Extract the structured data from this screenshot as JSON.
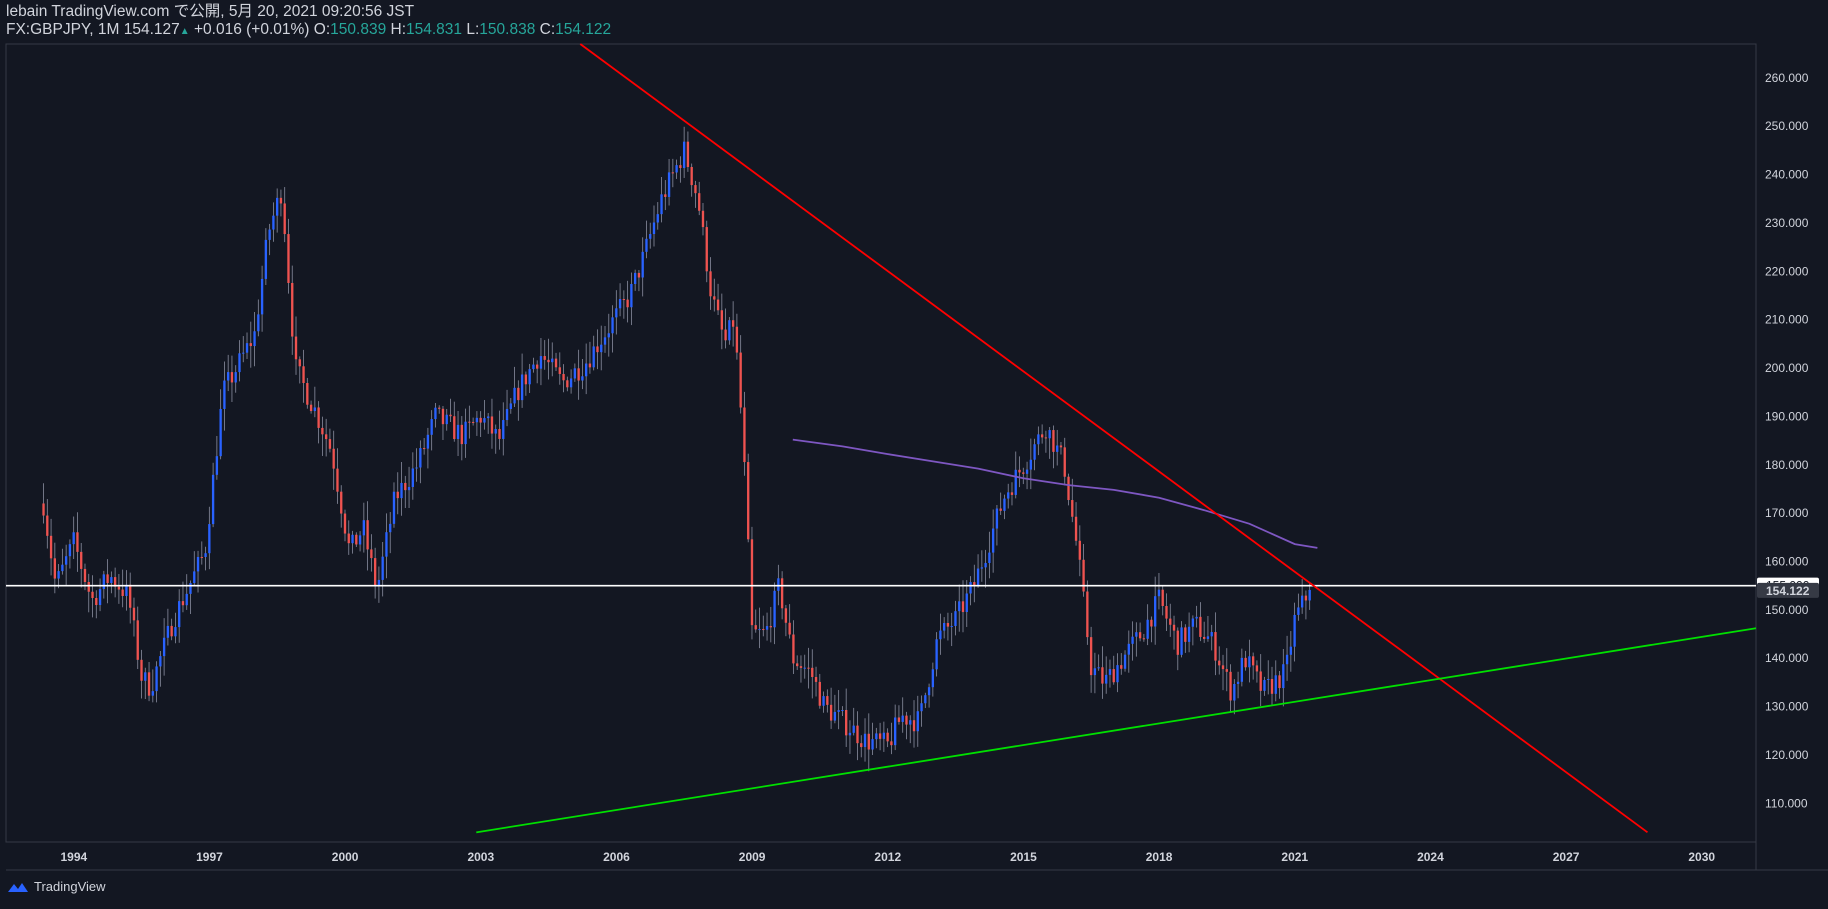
{
  "header": {
    "publisher": "lebain TradingView.com で公開, 5月 20, 2021 09:20:56 JST",
    "symbol": "FX:GBPJPY, 1M",
    "last": "154.127",
    "change": "+0.016 (+0.01%)",
    "o_label": "O:",
    "o": "150.839",
    "h_label": "H:",
    "h": "154.831",
    "l_label": "L:",
    "l": "150.838",
    "c_label": "C:",
    "c": "154.122",
    "up_arrow": "▲"
  },
  "footer": {
    "brand": "TradingView",
    "logo_icon": "tradingview-cloud-icon"
  },
  "colors": {
    "bg": "#131722",
    "up": "#2962ff",
    "down": "#ef5350",
    "trend_down": "#ff0000",
    "trend_up": "#00e000",
    "ma": "#7e57c2",
    "hline": "#ffffff"
  },
  "chart_data": {
    "type": "candlestick",
    "symbol": "FX:GBPJPY",
    "interval": "1M",
    "x_ticks": [
      "1994",
      "1997",
      "2000",
      "2003",
      "2006",
      "2009",
      "2012",
      "2015",
      "2018",
      "2021",
      "2024",
      "2027",
      "2030"
    ],
    "x_range": [
      1992.5,
      2031.2
    ],
    "y_ticks": [
      "110.000",
      "120.000",
      "130.000",
      "140.000",
      "150.000",
      "160.000",
      "170.000",
      "180.000",
      "190.000",
      "200.000",
      "210.000",
      "220.000",
      "230.000",
      "240.000",
      "250.000",
      "260.000"
    ],
    "y_range": [
      102,
      267
    ],
    "price_labels": {
      "hline": "155.000",
      "last": "154.122"
    },
    "hline": 155,
    "last_price": 154.122,
    "anchors": [
      [
        1993.33,
        172
      ],
      [
        1993.6,
        155
      ],
      [
        1994.0,
        164
      ],
      [
        1994.4,
        152
      ],
      [
        1994.8,
        157
      ],
      [
        1995.2,
        153
      ],
      [
        1995.5,
        136
      ],
      [
        1995.7,
        134
      ],
      [
        1996.2,
        148
      ],
      [
        1996.9,
        162
      ],
      [
        1997.3,
        195
      ],
      [
        1997.6,
        200
      ],
      [
        1998.0,
        207
      ],
      [
        1998.3,
        228
      ],
      [
        1998.6,
        237
      ],
      [
        1998.9,
        200
      ],
      [
        1999.3,
        192
      ],
      [
        1999.7,
        183
      ],
      [
        2000.1,
        162
      ],
      [
        2000.4,
        167
      ],
      [
        2000.7,
        154
      ],
      [
        2001.1,
        173
      ],
      [
        2001.6,
        180
      ],
      [
        2002.0,
        190
      ],
      [
        2002.6,
        186
      ],
      [
        2003.0,
        190
      ],
      [
        2003.4,
        185
      ],
      [
        2003.8,
        195
      ],
      [
        2004.3,
        203
      ],
      [
        2004.8,
        197
      ],
      [
        2005.3,
        201
      ],
      [
        2005.8,
        208
      ],
      [
        2006.3,
        215
      ],
      [
        2006.6,
        223
      ],
      [
        2007.0,
        235
      ],
      [
        2007.5,
        245
      ],
      [
        2007.8,
        235
      ],
      [
        2008.1,
        215
      ],
      [
        2008.4,
        205
      ],
      [
        2008.6,
        210
      ],
      [
        2008.8,
        185
      ],
      [
        2009.0,
        145
      ],
      [
        2009.3,
        145
      ],
      [
        2009.6,
        155
      ],
      [
        2009.9,
        140
      ],
      [
        2010.3,
        137
      ],
      [
        2010.6,
        130
      ],
      [
        2011.0,
        127
      ],
      [
        2011.5,
        123
      ],
      [
        2012.0,
        122
      ],
      [
        2012.3,
        128
      ],
      [
        2012.7,
        127
      ],
      [
        2013.1,
        144
      ],
      [
        2013.5,
        148
      ],
      [
        2013.9,
        155
      ],
      [
        2014.2,
        163
      ],
      [
        2014.6,
        174
      ],
      [
        2015.0,
        180
      ],
      [
        2015.5,
        188
      ],
      [
        2015.9,
        180
      ],
      [
        2016.2,
        162
      ],
      [
        2016.5,
        138
      ],
      [
        2016.8,
        135
      ],
      [
        2017.2,
        140
      ],
      [
        2017.6,
        145
      ],
      [
        2018.0,
        152
      ],
      [
        2018.4,
        143
      ],
      [
        2018.8,
        147
      ],
      [
        2019.2,
        143
      ],
      [
        2019.6,
        133
      ],
      [
        2019.9,
        140
      ],
      [
        2020.3,
        133
      ],
      [
        2020.8,
        137
      ],
      [
        2021.0,
        148
      ],
      [
        2021.33,
        154.12
      ]
    ],
    "indicators": {
      "moving_average": [
        [
          2009.9,
          185.2
        ],
        [
          2011.0,
          183.8
        ],
        [
          2012.0,
          182.2
        ],
        [
          2013.0,
          180.7
        ],
        [
          2014.0,
          179.2
        ],
        [
          2015.0,
          177.2
        ],
        [
          2016.0,
          175.8
        ],
        [
          2017.0,
          174.8
        ],
        [
          2018.0,
          173.2
        ],
        [
          2019.0,
          170.6
        ],
        [
          2020.0,
          167.8
        ],
        [
          2021.0,
          163.6
        ],
        [
          2021.5,
          162.8
        ]
      ]
    },
    "trendlines": [
      {
        "color": "#ff0000",
        "points": [
          [
            2005.2,
            267
          ],
          [
            2028.8,
            104
          ]
        ]
      },
      {
        "color": "#00e000",
        "points": [
          [
            2002.9,
            104
          ],
          [
            2031.2,
            146.2
          ]
        ]
      }
    ]
  }
}
